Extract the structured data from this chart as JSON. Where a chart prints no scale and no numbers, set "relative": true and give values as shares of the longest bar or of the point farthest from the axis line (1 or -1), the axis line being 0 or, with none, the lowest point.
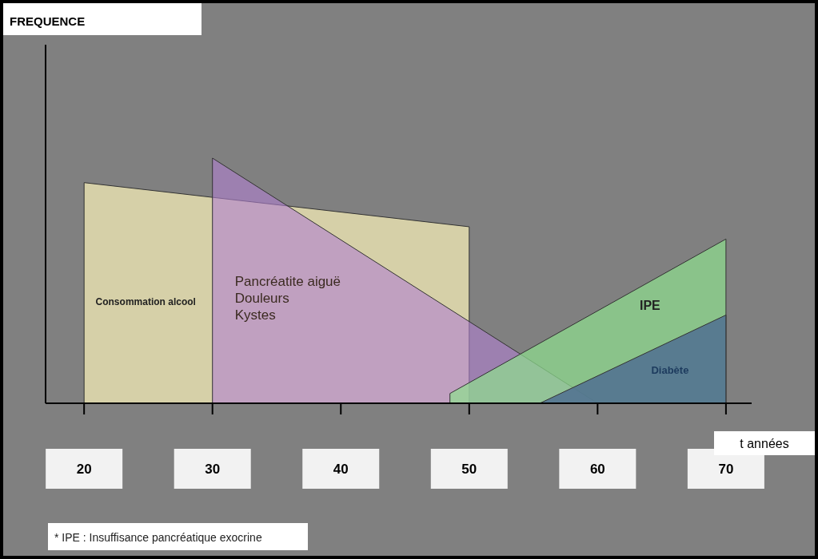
{
  "chart_data": {
    "type": "area",
    "relative": true,
    "xlabel": "t années",
    "xlim": [
      17,
      72
    ],
    "xticks": [
      20,
      30,
      40,
      50,
      60,
      70
    ],
    "series": [
      {
        "name": "Consommation alcool",
        "color": "#d6d0a8",
        "x": [
          20,
          50
        ],
        "values": [
          0.9,
          0.72
        ]
      },
      {
        "name": "Pancréatite aiguë\nDouleurs\nKystes",
        "color": "#b080d0",
        "x": [
          30,
          60
        ],
        "values": [
          1,
          0
        ]
      },
      {
        "name": "IPE",
        "color": "#8ee08e",
        "x": [
          48.5,
          70
        ],
        "values": [
          0.04,
          0.67
        ]
      },
      {
        "name": "Diabète",
        "color": "#4f6f90",
        "x": [
          55.5,
          70
        ],
        "values": [
          0,
          0.36
        ]
      }
    ],
    "annotations": [
      "FREQUENCE",
      "* IPE : Insuffisance pancréatique exocrine"
    ]
  }
}
